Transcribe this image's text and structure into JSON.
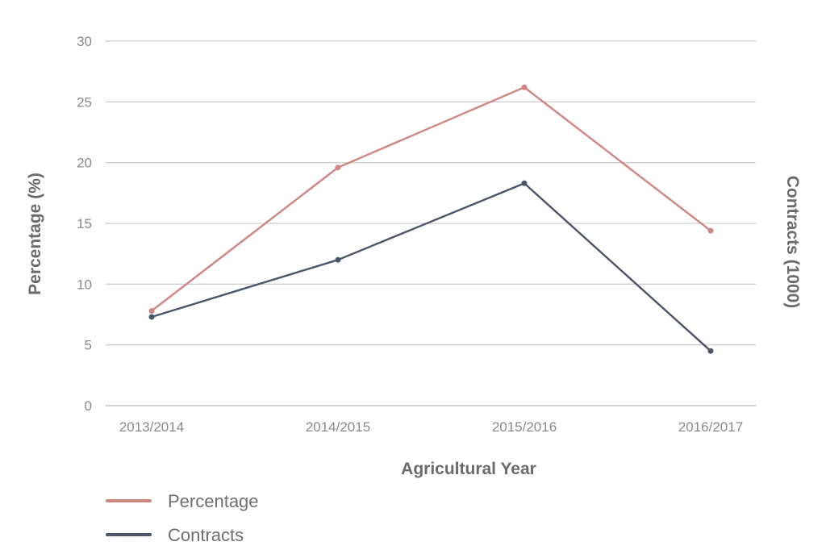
{
  "chart_data": {
    "type": "line",
    "title": "",
    "xlabel": "Agricultural Year",
    "ylabel": "Percentage (%)",
    "y2label": "Contracts (1000)",
    "categories": [
      "2013/2014",
      "2014/2015",
      "2015/2016",
      "2016/2017"
    ],
    "ylim": [
      0,
      30
    ],
    "yticks": [
      "0",
      "5",
      "10",
      "15",
      "20",
      "25",
      "30"
    ],
    "grid": true,
    "legend_position": "bottom-left",
    "series": [
      {
        "name": "Percentage",
        "color": "#cf8580",
        "values": [
          7.8,
          19.6,
          26.2,
          14.4
        ]
      },
      {
        "name": "Contracts",
        "color": "#4a5568",
        "values": [
          7.3,
          12.0,
          18.3,
          4.5
        ]
      }
    ]
  }
}
